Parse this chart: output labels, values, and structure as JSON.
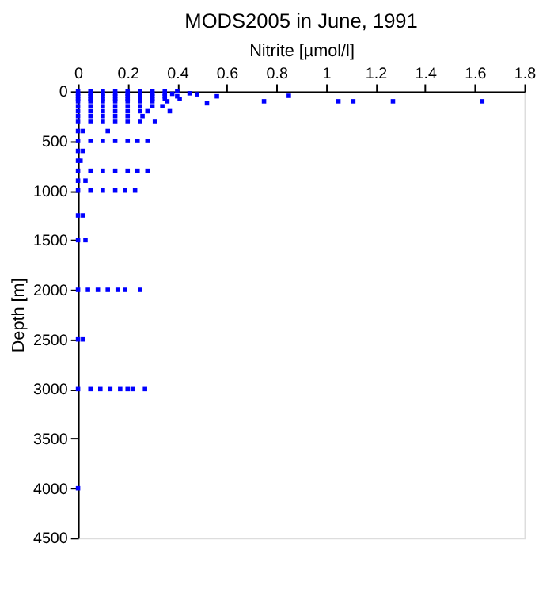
{
  "chart_data": {
    "type": "scatter",
    "title": "MODS2005 in June, 1991",
    "xlabel": "Nitrite [µmol/l]",
    "ylabel": "Depth [m]",
    "xlim": [
      0,
      1.8
    ],
    "xticks": [
      0,
      0.2,
      0.4,
      0.6,
      0.8,
      1,
      1.2,
      1.4,
      1.6,
      1.8
    ],
    "ylim": [
      4500,
      0
    ],
    "yticks": [
      0,
      500,
      1000,
      1500,
      2000,
      2500,
      3000,
      3500,
      4000,
      4500
    ],
    "grid": false,
    "marker": "square",
    "series": [
      {
        "color": "#0000ff",
        "x": [
          0,
          0.05,
          0.1,
          0.15,
          0.2,
          0.25,
          0.3,
          0.35,
          0.4,
          0,
          0.05,
          0.1,
          0.15,
          0.2,
          0.25,
          0.3,
          0.35,
          0.38,
          0,
          0.05,
          0.1,
          0.15,
          0.2,
          0.25,
          0.3,
          0.35,
          0.4,
          0,
          0.05,
          0.1,
          0.15,
          0.2,
          0.25,
          0.3,
          0.35,
          0.41,
          0,
          0.05,
          0.1,
          0.15,
          0.2,
          0.25,
          0.3,
          0.36,
          0,
          0.05,
          0.1,
          0.15,
          0.2,
          0.25,
          0.3,
          0.34,
          0,
          0.05,
          0.1,
          0.15,
          0.2,
          0.25,
          0.28,
          0,
          0.05,
          0.1,
          0.15,
          0.2,
          0.26,
          0,
          0.05,
          0.1,
          0.15,
          0.2,
          0.25,
          0.31,
          0.37,
          0.45,
          0.48,
          0.56,
          0.85,
          0.75,
          0.52,
          1.05,
          1.11,
          1.27,
          1.63,
          0,
          0.02,
          0.12,
          0,
          0.05,
          0.1,
          0.15,
          0.2,
          0.24,
          0.28,
          0,
          0.02,
          0,
          0.01,
          0,
          0.05,
          0.1,
          0.15,
          0.2,
          0.24,
          0.28,
          0,
          0.03,
          0,
          0.05,
          0.1,
          0.15,
          0.19,
          0.23,
          0,
          0.02,
          0,
          0.03,
          0,
          0.04,
          0.08,
          0.12,
          0.16,
          0.19,
          0.25,
          0,
          0.02,
          0,
          0.05,
          0.09,
          0.13,
          0.17,
          0.2,
          0.22,
          0.27,
          0
        ],
        "values": [
          0,
          0,
          0,
          0,
          0,
          0,
          0,
          0,
          0,
          25,
          25,
          25,
          25,
          25,
          25,
          25,
          25,
          25,
          50,
          50,
          50,
          50,
          50,
          50,
          50,
          50,
          50,
          75,
          75,
          75,
          75,
          75,
          75,
          75,
          75,
          75,
          100,
          100,
          100,
          100,
          100,
          100,
          100,
          100,
          150,
          150,
          150,
          150,
          150,
          150,
          150,
          150,
          200,
          200,
          200,
          200,
          200,
          200,
          200,
          250,
          250,
          250,
          250,
          250,
          250,
          300,
          300,
          300,
          300,
          300,
          300,
          300,
          200,
          20,
          30,
          50,
          45,
          100,
          120,
          100,
          100,
          100,
          100,
          400,
          400,
          400,
          500,
          500,
          500,
          500,
          500,
          500,
          500,
          600,
          600,
          700,
          700,
          800,
          800,
          800,
          800,
          800,
          800,
          800,
          900,
          900,
          1000,
          1000,
          1000,
          1000,
          1000,
          1000,
          1250,
          1250,
          1500,
          1500,
          2000,
          2000,
          2000,
          2000,
          2000,
          2000,
          2000,
          2500,
          2500,
          3000,
          3000,
          3000,
          3000,
          3000,
          3000,
          3000,
          3000,
          4000
        ]
      }
    ]
  }
}
